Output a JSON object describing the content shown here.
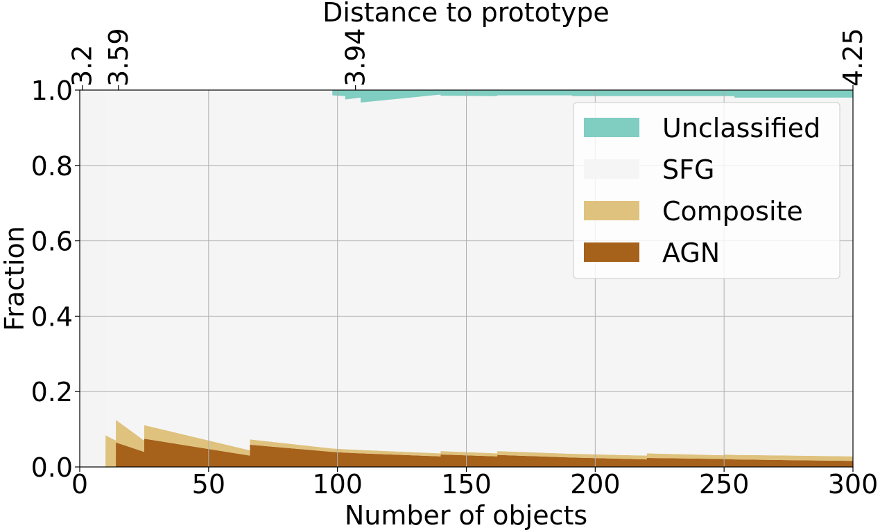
{
  "chart_data": {
    "type": "area",
    "stacked": true,
    "title": "",
    "xlabel": "Number of objects",
    "ylabel": "Fraction",
    "top_xlabel": "Distance to prototype",
    "xlim": [
      0,
      300
    ],
    "ylim": [
      0,
      1.0
    ],
    "grid": true,
    "x_ticks": [
      0,
      50,
      100,
      150,
      200,
      250,
      300
    ],
    "x_tick_labels": [
      "0",
      "50",
      "100",
      "150",
      "200",
      "250",
      "300"
    ],
    "y_ticks": [
      0,
      0.2,
      0.4,
      0.6,
      0.8,
      1.0
    ],
    "y_tick_labels": [
      "0.0",
      "0.2",
      "0.4",
      "0.6",
      "0.8",
      "1.0"
    ],
    "top_ticks": [
      {
        "x": 1,
        "label": "3.2"
      },
      {
        "x": 15,
        "label": "3.59"
      },
      {
        "x": 107,
        "label": "3.94"
      },
      {
        "x": 300,
        "label": "4.25"
      }
    ],
    "legend_position": "top-right",
    "colors": {
      "Unclassified": "#80cdc1",
      "SFG": "#f5f5f5",
      "Composite": "#dfc27d",
      "AGN": "#a6611a"
    },
    "x": [
      10,
      10.01,
      14,
      14.01,
      25,
      25.01,
      66,
      66.01,
      98,
      98.01,
      103,
      103.01,
      109,
      109.01,
      140,
      140.01,
      162,
      162.01,
      191,
      191.01,
      220,
      220.01,
      250,
      250.01,
      254,
      254.01,
      300
    ],
    "series": [
      {
        "name": "AGN",
        "values": [
          0,
          0,
          0,
          0.065,
          0.04,
          0.075,
          0.03,
          0.059,
          0.04,
          0.04,
          0.038,
          0.038,
          0.036,
          0.036,
          0.028,
          0.033,
          0.028,
          0.032,
          0.025,
          0.025,
          0.02,
          0.024,
          0.021,
          0.021,
          0.02,
          0.02,
          0.016
        ]
      },
      {
        "name": "Composite",
        "values": [
          0,
          0.084,
          0.07,
          0.06,
          0.03,
          0.036,
          0.014,
          0.014,
          0.009,
          0.009,
          0.009,
          0.009,
          0.009,
          0.009,
          0.008,
          0.009,
          0.008,
          0.01,
          0.01,
          0.01,
          0.01,
          0.012,
          0.01,
          0.012,
          0.012,
          0.012,
          0.012
        ]
      },
      {
        "name": "SFG",
        "values": [
          1.0,
          0.916,
          0.93,
          0.875,
          0.93,
          0.889,
          0.956,
          0.927,
          0.951,
          0.937,
          0.937,
          0.928,
          0.935,
          0.922,
          0.952,
          0.943,
          0.948,
          0.944,
          0.951,
          0.949,
          0.954,
          0.948,
          0.953,
          0.951,
          0.952,
          0.948,
          0.952
        ]
      },
      {
        "name": "Unclassified",
        "values": [
          0,
          0,
          0,
          0,
          0,
          0,
          0,
          0,
          0,
          0.014,
          0.016,
          0.025,
          0.02,
          0.033,
          0.012,
          0.015,
          0.016,
          0.014,
          0.014,
          0.016,
          0.016,
          0.016,
          0.016,
          0.016,
          0.016,
          0.02,
          0.02
        ]
      }
    ],
    "legend_order": [
      "Unclassified",
      "SFG",
      "Composite",
      "AGN"
    ]
  }
}
